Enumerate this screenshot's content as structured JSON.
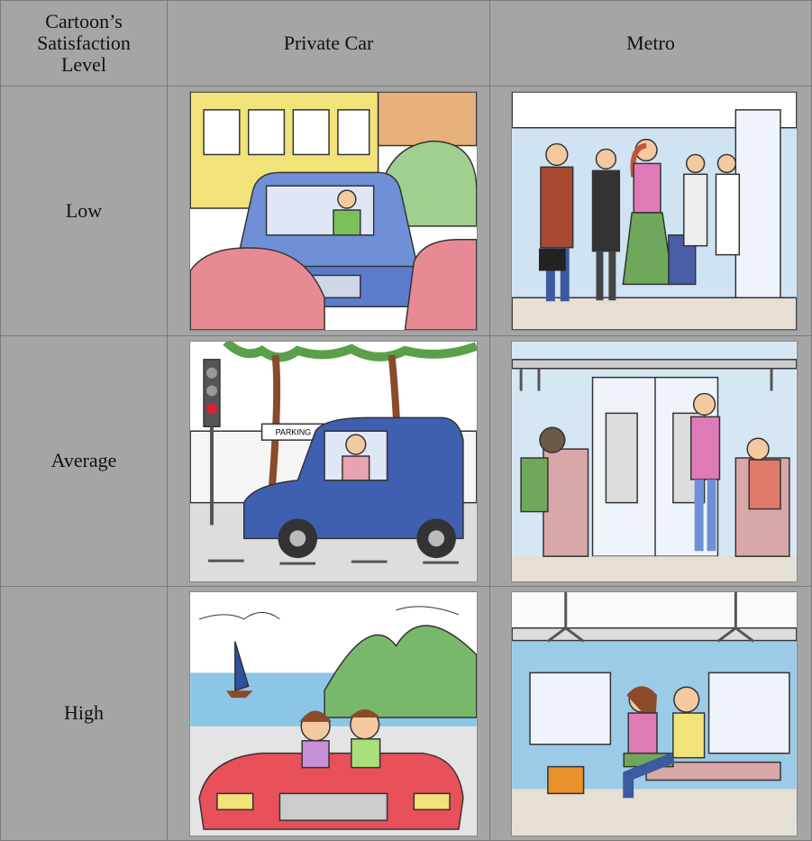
{
  "table": {
    "header": [
      "Cartoon’s Satisfaction Level",
      "Private Car",
      "Metro"
    ],
    "rows": [
      "Low",
      "Average",
      "High"
    ],
    "parking_sign": "PARKING"
  }
}
